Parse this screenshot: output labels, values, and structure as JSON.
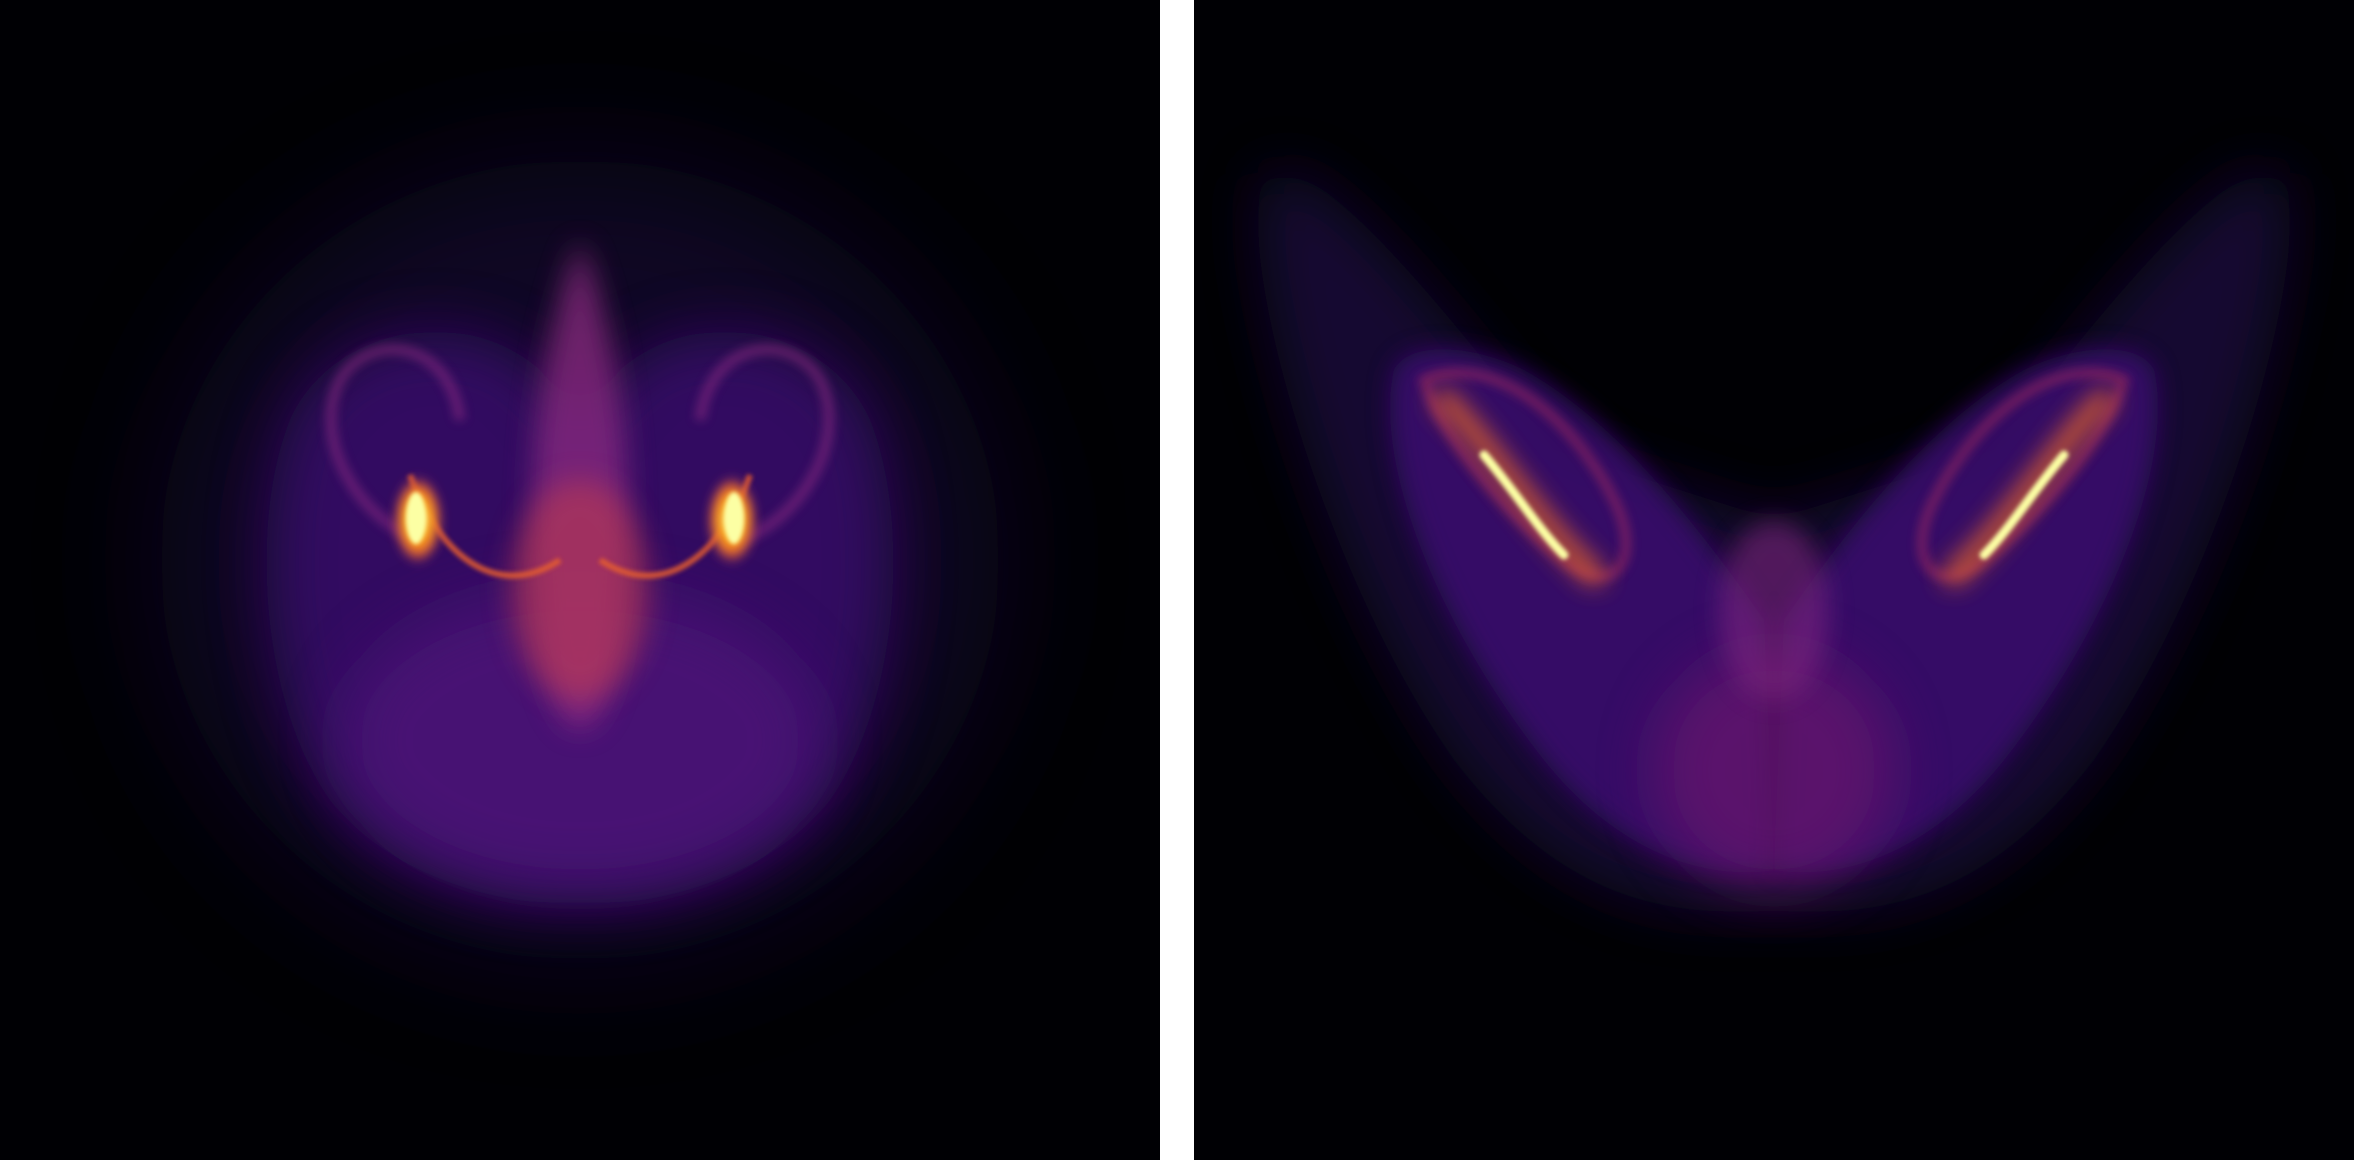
{
  "figure": {
    "panels": [
      {
        "id": "left",
        "subject": "attractor-density-front-view"
      },
      {
        "id": "right",
        "subject": "attractor-density-butterfly-view"
      }
    ],
    "colormap": {
      "name": "inferno",
      "background": "#000004",
      "stops": [
        "#000004",
        "#1b0c41",
        "#4a0c6b",
        "#781c6d",
        "#a52c60",
        "#cf4446",
        "#ed6925",
        "#fb9b06",
        "#f7d13d",
        "#fcffa4"
      ]
    },
    "separator_color": "#ffffff"
  }
}
